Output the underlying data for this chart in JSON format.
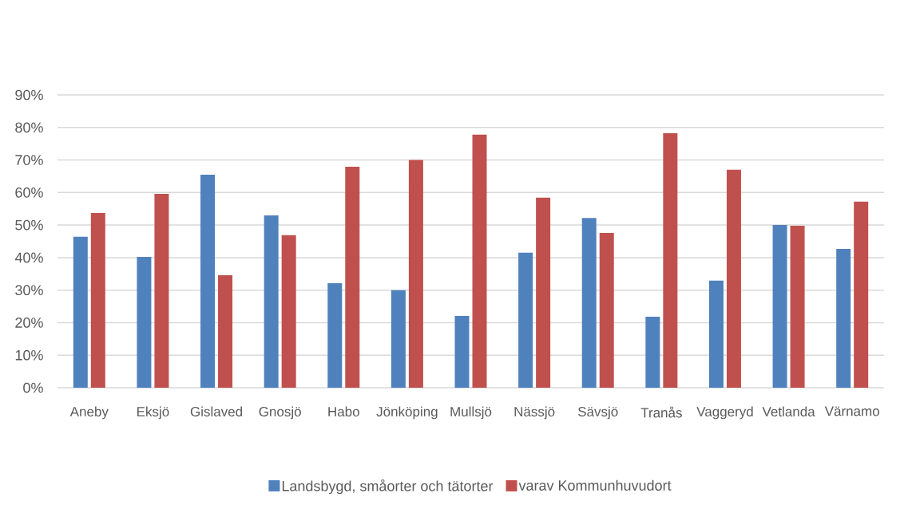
{
  "chart_data": {
    "type": "bar",
    "categories": [
      "Aneby",
      "Eksjö",
      "Gislaved",
      "Gnosjö",
      "Habo",
      "Jönköping",
      "Mullsjö",
      "Nässjö",
      "Sävsjö",
      "Tranås",
      "Vaggeryd",
      "Vetlanda",
      "Värnamo"
    ],
    "series": [
      {
        "name": "Landsbygd, småorter och tätorter",
        "color": "#4f81bd",
        "values": [
          46.4,
          40.2,
          65.5,
          53.0,
          32.1,
          30.0,
          22.1,
          41.5,
          52.2,
          21.8,
          32.9,
          50.0,
          42.7
        ]
      },
      {
        "name": "varav Kommunhuvudort",
        "color": "#c0504d",
        "values": [
          53.7,
          59.6,
          34.6,
          46.9,
          67.9,
          70.0,
          77.8,
          58.4,
          47.6,
          78.2,
          67.0,
          49.8,
          57.2
        ]
      }
    ],
    "ylim": [
      0,
      90
    ],
    "yticks": [
      {
        "value": 0,
        "label": "0%"
      },
      {
        "value": 10,
        "label": "10%"
      },
      {
        "value": 20,
        "label": "20%"
      },
      {
        "value": 30,
        "label": "30%"
      },
      {
        "value": 40,
        "label": "40%"
      },
      {
        "value": 50,
        "label": "50%"
      },
      {
        "value": 60,
        "label": "60%"
      },
      {
        "value": 70,
        "label": "70%"
      },
      {
        "value": 80,
        "label": "80%"
      },
      {
        "value": 90,
        "label": "90%"
      }
    ],
    "grid": "y",
    "legend": "bottom"
  }
}
